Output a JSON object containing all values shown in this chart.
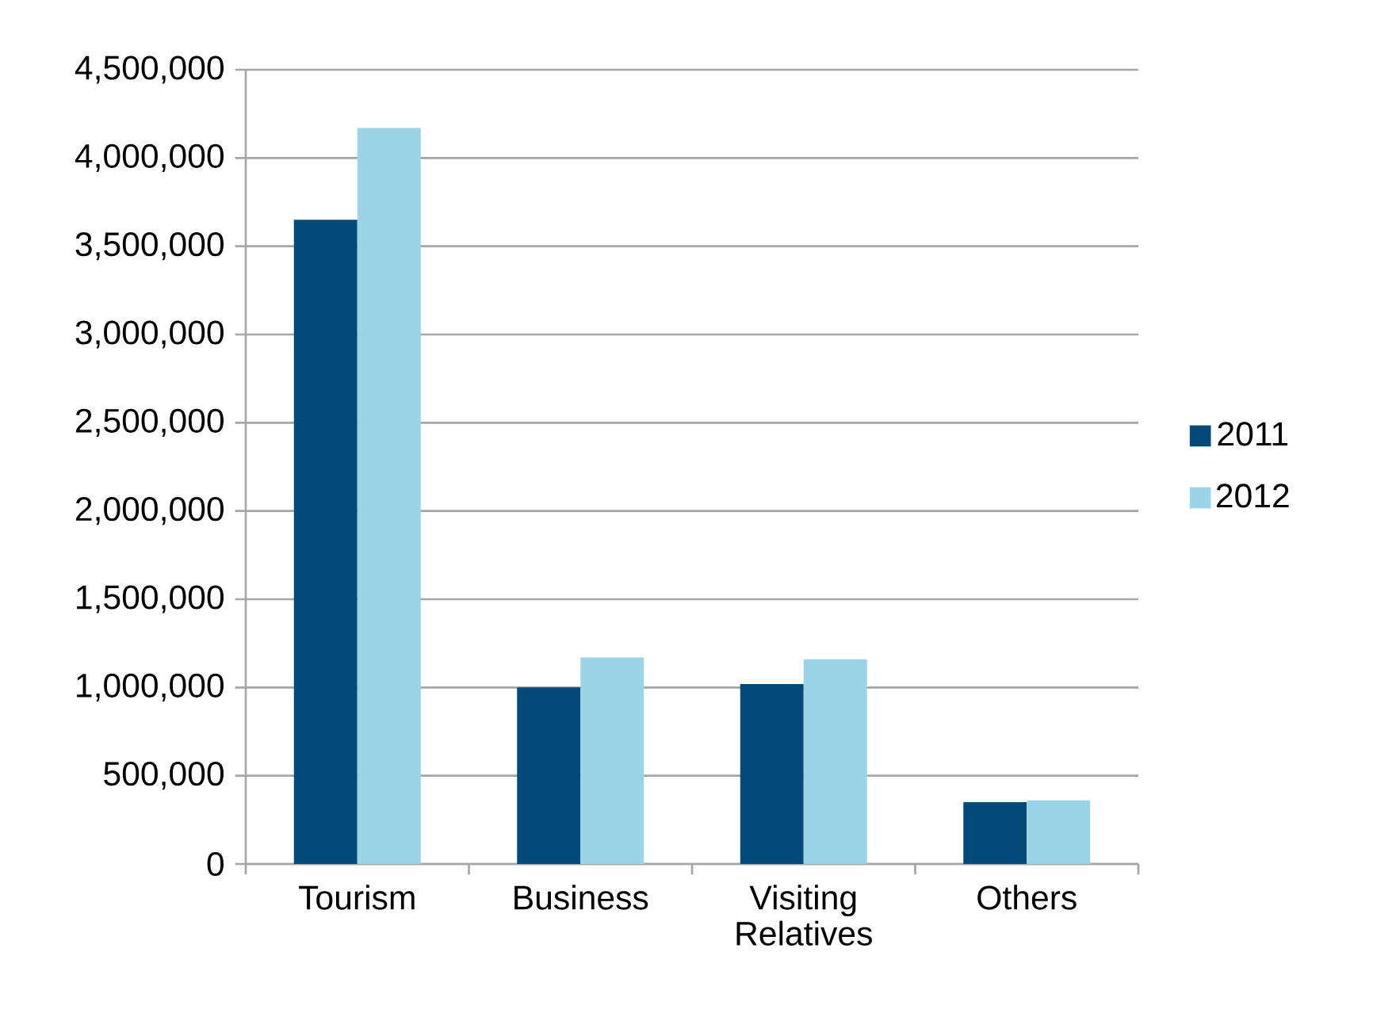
{
  "chart_data": {
    "type": "bar",
    "categories": [
      "Tourism",
      "Business",
      "Visiting Relatives",
      "Others"
    ],
    "series": [
      {
        "name": "2011",
        "color": "#024a7a",
        "values": [
          3650000,
          1000000,
          1020000,
          350000
        ]
      },
      {
        "name": "2012",
        "color": "#9ad4e6",
        "values": [
          4170000,
          1170000,
          1160000,
          360000
        ]
      }
    ],
    "ylim": [
      0,
      4500000
    ],
    "yticks": [
      0,
      {
        "value": 500000,
        "label": "500,000"
      },
      {
        "value": 1000000,
        "label": "1,000,000"
      },
      {
        "value": 1500000,
        "label": "1,500,000"
      },
      {
        "value": 2000000,
        "label": "2,000,000"
      },
      {
        "value": 2500000,
        "label": "2,500,000"
      },
      {
        "value": 3000000,
        "label": "3,000,000"
      },
      {
        "value": 3500000,
        "label": "3,500,000"
      },
      {
        "value": 4000000,
        "label": "4,000,000"
      },
      {
        "value": 4500000,
        "label": "4,500,000"
      }
    ],
    "grid": "y",
    "legend": "right"
  }
}
